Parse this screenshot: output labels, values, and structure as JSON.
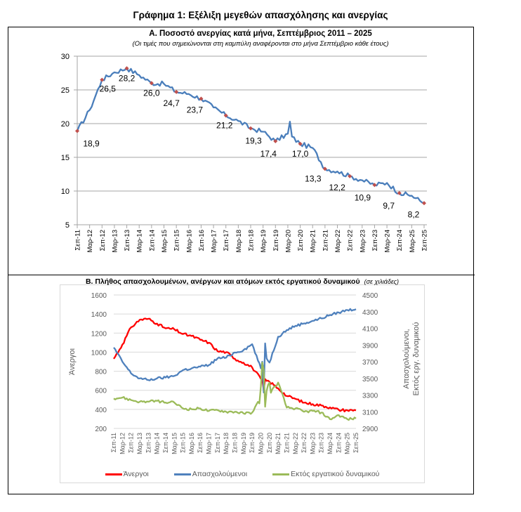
{
  "header": {
    "main_title": "Γράφημα 1: Εξέλιξη μεγεθών απασχόλησης και ανεργίας"
  },
  "colors": {
    "unemployment_rate_line": "#4a7ebb",
    "marker": "#c0504d",
    "unemployed": "#ff0000",
    "employed": "#4f81bd",
    "out_of_labour_force": "#9bbb59",
    "grid": "#bfbfbf"
  },
  "chart_data": [
    {
      "type": "line",
      "title": "Α. Ποσοστό ανεργίας κατά μήνα, Σεπτέμβριος 2011 – 2025",
      "subtitle": "(Οι τιμές που σημειώνονται στη καμπύλη αναφέρονται στο μήνα Σεπτέμβριο κάθε έτους)",
      "xlabel": "",
      "ylabel": "",
      "ylim": [
        5,
        30
      ],
      "yticks": [
        "5",
        "10",
        "15",
        "20",
        "25",
        "30"
      ],
      "grid": true,
      "categories": [
        "Σεπ-11",
        "Μαρ-12",
        "Σεπ-12",
        "Μαρ-13",
        "Σεπ-13",
        "Μαρ-14",
        "Σεπ-14",
        "Μαρ-15",
        "Σεπ-15",
        "Μαρ-16",
        "Σεπ-16",
        "Μαρ-17",
        "Σεπ-17",
        "Μαρ-18",
        "Σεπ-18",
        "Μαρ-19",
        "Σεπ-19",
        "Μαρ-20",
        "Σεπ-20",
        "Μαρ-21",
        "Σεπ-21",
        "Μαρ-22",
        "Σεπ-22",
        "Μαρ-23",
        "Σεπ-23",
        "Μαρ-24",
        "Σεπ-24",
        "Μαρ-25",
        "Σεπ-25"
      ],
      "series": [
        {
          "name": "Ποσοστό ανεργίας",
          "values": [
            18.9,
            22.0,
            26.5,
            27.6,
            28.2,
            27.2,
            26.0,
            25.9,
            24.7,
            24.4,
            23.7,
            22.4,
            21.2,
            20.4,
            19.3,
            18.8,
            17.4,
            18.5,
            17.0,
            16.4,
            13.3,
            12.9,
            12.2,
            11.6,
            10.9,
            11.2,
            9.7,
            9.3,
            8.2
          ]
        }
      ],
      "september_labels": [
        {
          "label": "Σεπ-11",
          "value": "18,9"
        },
        {
          "label": "Σεπ-12",
          "value": "26,5"
        },
        {
          "label": "Σεπ-13",
          "value": "28,2"
        },
        {
          "label": "Σεπ-14",
          "value": "26,0"
        },
        {
          "label": "Σεπ-15",
          "value": "24,7"
        },
        {
          "label": "Σεπ-16",
          "value": "23,7"
        },
        {
          "label": "Σεπ-17",
          "value": "21,2"
        },
        {
          "label": "Σεπ-18",
          "value": "19,3"
        },
        {
          "label": "Σεπ-19",
          "value": "17,4"
        },
        {
          "label": "Σεπ-20",
          "value": "17,0"
        },
        {
          "label": "Σεπ-21",
          "value": "13,3"
        },
        {
          "label": "Σεπ-22",
          "value": "12,2"
        },
        {
          "label": "Σεπ-23",
          "value": "10,9"
        },
        {
          "label": "Σεπ-24",
          "value": "9,7"
        },
        {
          "label": "Σεπ-25",
          "value": "8,2"
        }
      ],
      "intra_year_extremes": [
        {
          "between": [
            "Μαρ-20",
            "Σεπ-20"
          ],
          "peak_value": 20.3
        }
      ]
    },
    {
      "type": "line",
      "title": "Β. Πλήθος απασχολουμένων, ανέργων και ατόμων εκτός εργατικού δυναμικού",
      "title_note": "(σε χιλιάδες)",
      "ylabel_left": "Άνεργοι",
      "ylabel_right": "Απασχολούμενοι, Εκτός εργ. δυναμικού",
      "ylim_left": [
        200,
        1600
      ],
      "ylim_right": [
        2900,
        4500
      ],
      "yticks_left": [
        "200",
        "400",
        "600",
        "800",
        "1000",
        "1200",
        "1400",
        "1600"
      ],
      "yticks_right": [
        "2900",
        "3100",
        "3300",
        "3500",
        "3700",
        "3900",
        "4100",
        "4300",
        "4500"
      ],
      "grid": true,
      "legend_position": "bottom",
      "categories": [
        "Σεπ-11",
        "Μαρ-12",
        "Σεπ-12",
        "Μαρ-13",
        "Σεπ-13",
        "Μαρ-14",
        "Σεπ-14",
        "Μαρ-15",
        "Σεπ-15",
        "Μαρ-16",
        "Σεπ-16",
        "Μαρ-17",
        "Σεπ-17",
        "Μαρ-18",
        "Σεπ-18",
        "Μαρ-19",
        "Σεπ-19",
        "Μαρ-20",
        "Σεπ-20",
        "Μαρ-21",
        "Σεπ-21",
        "Μαρ-22",
        "Σεπ-22",
        "Μαρ-23",
        "Σεπ-23",
        "Μαρ-24",
        "Σεπ-24",
        "Μαρ-25",
        "Σεπ-25"
      ],
      "series": [
        {
          "name": "Άνεργοι",
          "axis": "left",
          "values": [
            930,
            1080,
            1260,
            1340,
            1350,
            1300,
            1250,
            1240,
            1190,
            1170,
            1130,
            1100,
            1010,
            1000,
            930,
            890,
            840,
            720,
            690,
            620,
            540,
            510,
            470,
            455,
            440,
            420,
            395,
            390,
            390
          ]
        },
        {
          "name": "Απασχολούμενοι",
          "axis": "right",
          "values": [
            3870,
            3700,
            3560,
            3500,
            3480,
            3500,
            3510,
            3530,
            3600,
            3620,
            3640,
            3660,
            3740,
            3750,
            3810,
            3840,
            3910,
            3620,
            3690,
            4000,
            4080,
            4130,
            4160,
            4190,
            4220,
            4260,
            4290,
            4320,
            4330
          ]
        },
        {
          "name": "Εκτός εργατικού δυναμικού",
          "axis": "right",
          "values": [
            3260,
            3270,
            3240,
            3220,
            3220,
            3230,
            3210,
            3210,
            3140,
            3130,
            3140,
            3110,
            3120,
            3100,
            3100,
            3080,
            3090,
            3270,
            3320,
            3450,
            3150,
            3140,
            3100,
            3110,
            3090,
            3010,
            3060,
            3010,
            3020
          ]
        }
      ],
      "intra_year_extremes": [
        {
          "series": "Απασχολούμενοι",
          "between": [
            "Μαρ-20",
            "Σεπ-20"
          ],
          "trough_value": 3330,
          "rebound_value": 3920
        },
        {
          "series": "Εκτός εργατικού δυναμικού",
          "between": [
            "Μαρ-20",
            "Σεπ-20"
          ],
          "peak_value": 3690,
          "trough_value": 3160
        }
      ]
    }
  ],
  "legend": [
    {
      "label": "Άνεργοι",
      "color": "#ff0000"
    },
    {
      "label": "Απασχολούμενοι",
      "color": "#4f81bd"
    },
    {
      "label": "Εκτός εργατικού δυναμικού",
      "color": "#9bbb59"
    }
  ]
}
